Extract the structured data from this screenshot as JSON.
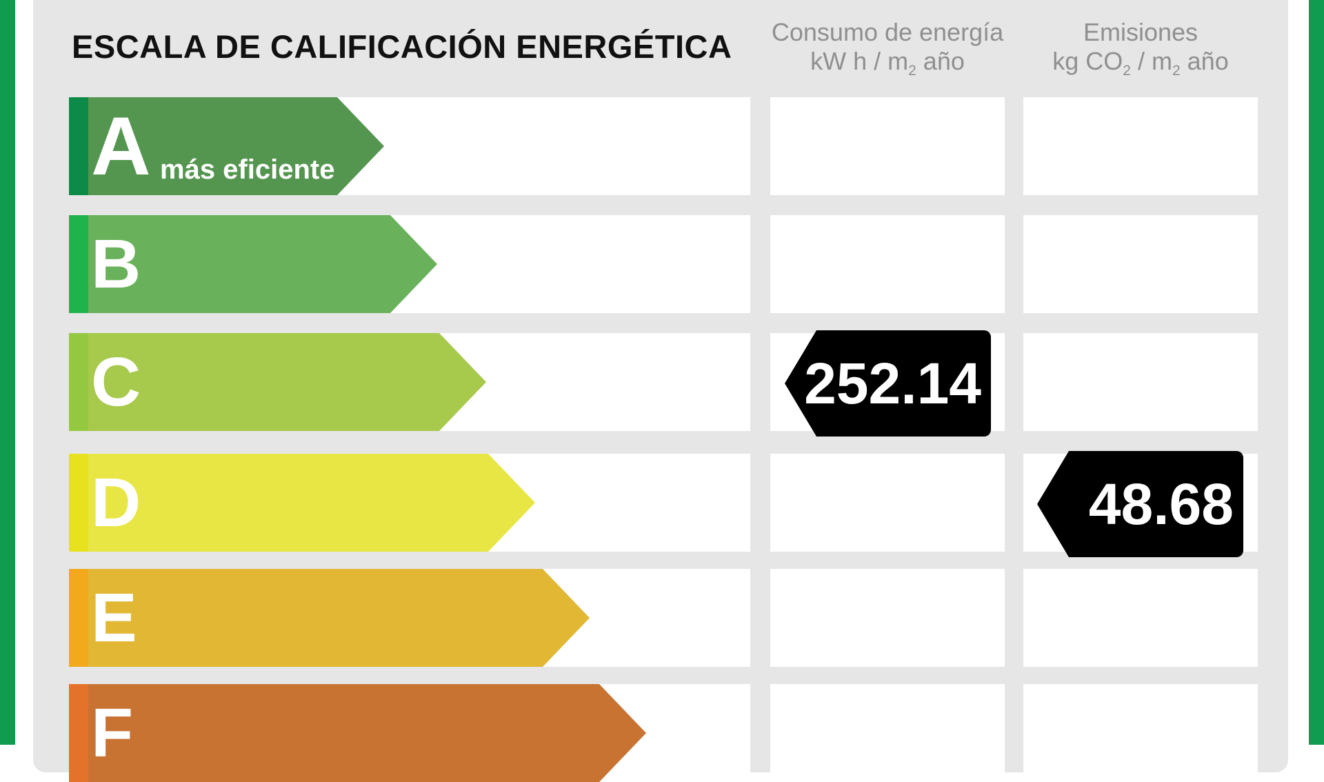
{
  "header": {
    "title": "ESCALA DE CALIFICACIÓN ENERGÉTICA",
    "energy_line1": "Consumo de energía",
    "energy_unit_pre": "kW h / m",
    "energy_unit_sub": "2",
    "energy_unit_post": " año",
    "emissions_line1": "Emisiones",
    "emissions_unit_pre": "kg CO",
    "emissions_unit_sub1": "2",
    "emissions_unit_mid": " / m",
    "emissions_unit_sub2": "2",
    "emissions_unit_post": " año"
  },
  "ratings": [
    {
      "letter": "A",
      "label": "más eficiente",
      "color": "#54964f",
      "strip": "#0c8a48"
    },
    {
      "letter": "B",
      "label": "",
      "color": "#69b15a",
      "strip": "#1fb34c"
    },
    {
      "letter": "C",
      "label": "",
      "color": "#a7c94c",
      "strip": "#94c841"
    },
    {
      "letter": "D",
      "label": "",
      "color": "#e8e645",
      "strip": "#e8e21e"
    },
    {
      "letter": "E",
      "label": "",
      "color": "#e2b734",
      "strip": "#f2a91b"
    },
    {
      "letter": "F",
      "label": "",
      "color": "#c97333",
      "strip": "#e5722a"
    }
  ],
  "energy_marker": {
    "value": "252.14",
    "rating": "C"
  },
  "emissions_marker": {
    "value": "48.68",
    "rating": "D"
  }
}
